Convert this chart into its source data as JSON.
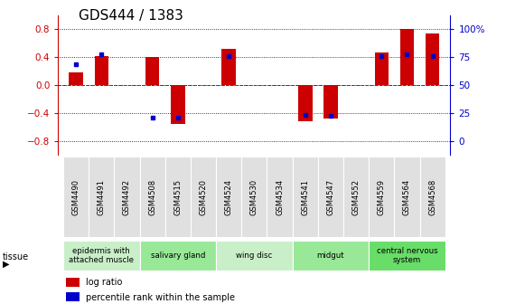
{
  "title": "GDS444 / 1383",
  "samples": [
    "GSM4490",
    "GSM4491",
    "GSM4492",
    "GSM4508",
    "GSM4515",
    "GSM4520",
    "GSM4524",
    "GSM4530",
    "GSM4534",
    "GSM4541",
    "GSM4547",
    "GSM4552",
    "GSM4559",
    "GSM4564",
    "GSM4568"
  ],
  "log_ratio": [
    0.18,
    0.42,
    0.0,
    0.4,
    -0.55,
    0.0,
    0.52,
    0.0,
    0.0,
    -0.52,
    -0.48,
    0.0,
    0.47,
    0.8,
    0.74
  ],
  "percentile": [
    0.3,
    0.44,
    null,
    -0.46,
    -0.46,
    null,
    0.42,
    null,
    null,
    -0.42,
    -0.44,
    null,
    0.42,
    0.44,
    0.42
  ],
  "tissues": [
    {
      "label": "epidermis with\nattached muscle",
      "start": 0,
      "end": 2,
      "color": "#c8efc8"
    },
    {
      "label": "salivary gland",
      "start": 3,
      "end": 5,
      "color": "#98e898"
    },
    {
      "label": "wing disc",
      "start": 6,
      "end": 8,
      "color": "#c8efc8"
    },
    {
      "label": "midgut",
      "start": 9,
      "end": 11,
      "color": "#98e898"
    },
    {
      "label": "central nervous\nsystem",
      "start": 12,
      "end": 14,
      "color": "#68dd68"
    }
  ],
  "ylim_left": [
    -1.0,
    1.0
  ],
  "yticks_left": [
    -0.8,
    -0.4,
    0.0,
    0.4,
    0.8
  ],
  "yticks_right": [
    0,
    25,
    50,
    75,
    100
  ],
  "bar_color": "#cc0000",
  "dot_color": "#0000cc",
  "background_color": "#ffffff",
  "title_fontsize": 11
}
